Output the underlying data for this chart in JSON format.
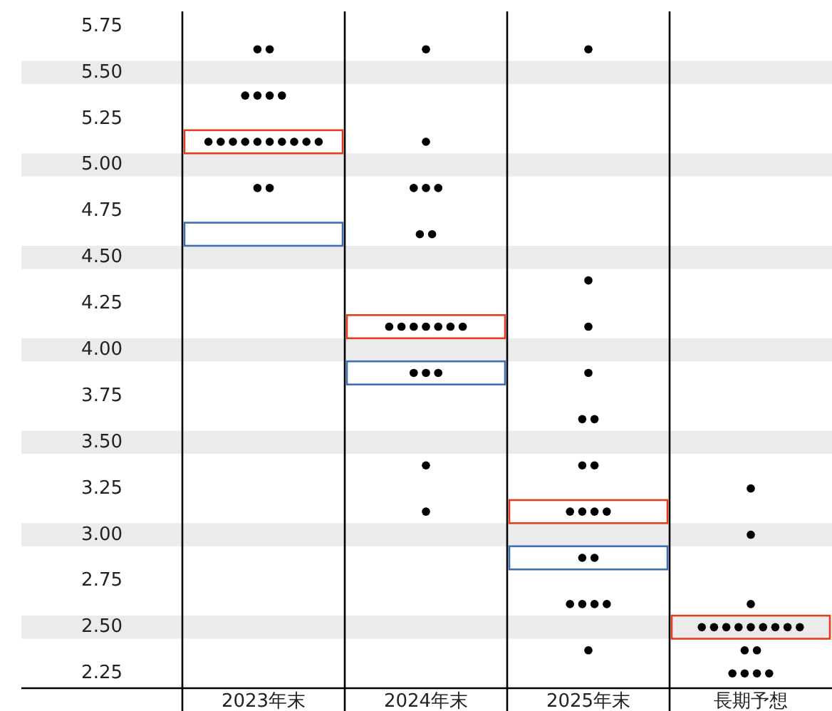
{
  "chart_data": {
    "type": "scatter",
    "categories": [
      "2023年末",
      "2024年末",
      "2025年末",
      "長期予想"
    ],
    "ylim": [
      2.17,
      5.83
    ],
    "yticks": [
      {
        "value": 2.25,
        "label": "2.25"
      },
      {
        "value": 2.5,
        "label": "2.50"
      },
      {
        "value": 2.75,
        "label": "2.75"
      },
      {
        "value": 3,
        "label": "3.00"
      },
      {
        "value": 3.25,
        "label": "3.25"
      },
      {
        "value": 3.5,
        "label": "3.50"
      },
      {
        "value": 3.75,
        "label": "3.75"
      },
      {
        "value": 4,
        "label": "4.00"
      },
      {
        "value": 4.25,
        "label": "4.25"
      },
      {
        "value": 4.5,
        "label": "4.50"
      },
      {
        "value": 4.75,
        "label": "4.75"
      },
      {
        "value": 5,
        "label": "5.00"
      },
      {
        "value": 5.25,
        "label": "5.25"
      },
      {
        "value": 5.5,
        "label": "5.50"
      },
      {
        "value": 5.75,
        "label": "5.75"
      }
    ],
    "bands": [
      {
        "axis": "y",
        "from": 2.4375,
        "to": 2.5625,
        "color": "#ebebeb"
      },
      {
        "axis": "y",
        "from": 2.9375,
        "to": 3.0625,
        "color": "#ebebeb"
      },
      {
        "axis": "y",
        "from": 3.4375,
        "to": 3.5625,
        "color": "#ebebeb"
      },
      {
        "axis": "y",
        "from": 3.9375,
        "to": 4.0625,
        "color": "#ebebeb"
      },
      {
        "axis": "y",
        "from": 4.4375,
        "to": 4.5625,
        "color": "#ebebeb"
      },
      {
        "axis": "y",
        "from": 4.9375,
        "to": 5.0625,
        "color": "#ebebeb"
      },
      {
        "axis": "y",
        "from": 5.4375,
        "to": 5.5625,
        "color": "#ebebeb"
      }
    ],
    "marker": "circle",
    "series": [
      {
        "type": "bar",
        "color": "#e0401c",
        "base": [
          5.0625,
          4.0625,
          3.0625,
          2.4375
        ],
        "values": [
          0.125,
          0.125,
          0.125,
          0.125
        ]
      },
      {
        "type": "bar",
        "color": "#3f6eb5",
        "base": [
          4.5625,
          3.8125,
          2.8125,
          null
        ],
        "values": [
          0.125,
          0.125,
          0.125,
          null
        ]
      },
      {
        "color": "#000000",
        "x": [
          "2023年末",
          "2023年末",
          "2023年末",
          "2023年末",
          "2023年末",
          "2023年末",
          "2023年末",
          "2023年末",
          "2023年末",
          "2023年末",
          "2023年末",
          "2023年末",
          "2023年末",
          "2023年末",
          "2023年末",
          "2023年末",
          "2023年末",
          "2023年末",
          "2024年末",
          "2024年末",
          "2024年末",
          "2024年末",
          "2024年末",
          "2024年末",
          "2024年末",
          "2024年末",
          "2024年末",
          "2024年末",
          "2024年末",
          "2024年末",
          "2024年末",
          "2024年末",
          "2024年末",
          "2024年末",
          "2024年末",
          "2024年末",
          "2024年末",
          "2025年末",
          "2025年末",
          "2025年末",
          "2025年末",
          "2025年末",
          "2025年末",
          "2025年末",
          "2025年末",
          "2025年末",
          "2025年末",
          "2025年末",
          "2025年末",
          "2025年末",
          "2025年末",
          "2025年末",
          "2025年末",
          "2025年末",
          "2025年末",
          "2025年末",
          "長期予想",
          "長期予想",
          "長期予想",
          "長期予想",
          "長期予想",
          "長期予想",
          "長期予想",
          "長期予想",
          "長期予想",
          "長期予想",
          "長期予想",
          "長期予想",
          "長期予想",
          "長期予想",
          "長期予想",
          "長期予想",
          "長期予想",
          "長期予想"
        ],
        "values": [
          5.625,
          5.625,
          5.375,
          5.375,
          5.375,
          5.375,
          5.125,
          5.125,
          5.125,
          5.125,
          5.125,
          5.125,
          5.125,
          5.125,
          5.125,
          5.125,
          4.875,
          4.875,
          5.625,
          5.125,
          4.875,
          4.875,
          4.875,
          4.625,
          4.625,
          4.125,
          4.125,
          4.125,
          4.125,
          4.125,
          4.125,
          4.125,
          3.875,
          3.875,
          3.875,
          3.375,
          3.125,
          5.625,
          4.375,
          4.125,
          3.875,
          3.625,
          3.625,
          3.375,
          3.375,
          3.125,
          3.125,
          3.125,
          3.125,
          2.875,
          2.875,
          2.625,
          2.625,
          2.625,
          2.625,
          2.375,
          3.25,
          3,
          2.625,
          2.5,
          2.5,
          2.5,
          2.5,
          2.5,
          2.5,
          2.5,
          2.5,
          2.5,
          2.375,
          2.375,
          2.25,
          2.25,
          2.25,
          2.25
        ]
      }
    ]
  }
}
